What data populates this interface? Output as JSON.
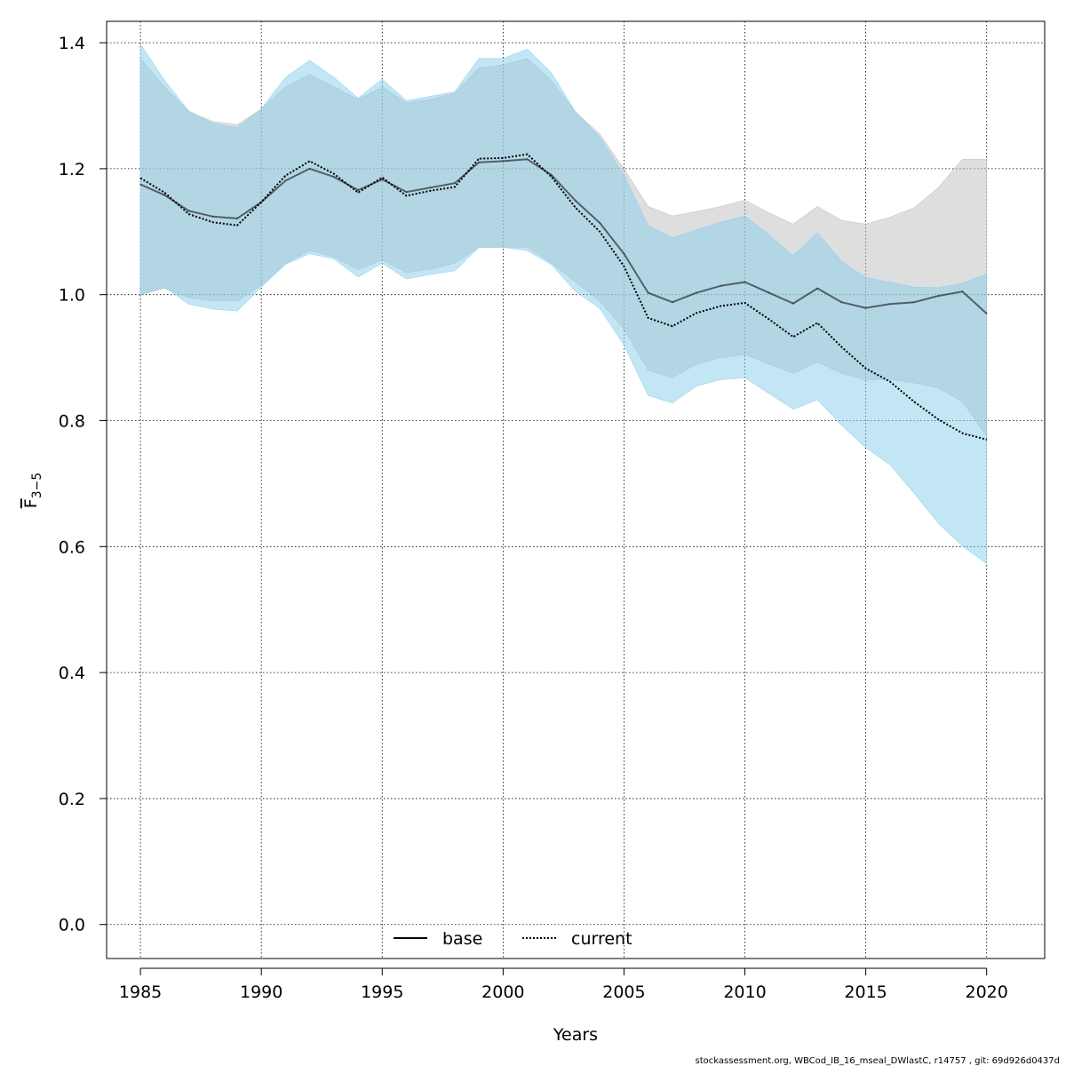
{
  "chart_data": {
    "type": "area",
    "title": "",
    "xlabel": "Years",
    "ylabel_main": "F",
    "ylabel_sub": "3−5",
    "xlim": [
      1983.6,
      2022.4
    ],
    "ylim": [
      -0.054,
      1.434
    ],
    "x_ticks": [
      1985,
      1990,
      1995,
      2000,
      2005,
      2010,
      2015,
      2020
    ],
    "y_ticks": [
      0.0,
      0.2,
      0.4,
      0.6,
      0.8,
      1.0,
      1.2,
      1.4
    ],
    "y_tick_labels": [
      "0.0",
      "0.2",
      "0.4",
      "0.6",
      "0.8",
      "1.0",
      "1.2",
      "1.4"
    ],
    "grid": true,
    "legend_position": "bottom-center",
    "x": [
      1985,
      1986,
      1987,
      1988,
      1989,
      1990,
      1991,
      1992,
      1993,
      1994,
      1995,
      1996,
      1997,
      1998,
      1999,
      2000,
      2001,
      2002,
      2003,
      2004,
      2005,
      2006,
      2007,
      2008,
      2009,
      2010,
      2011,
      2012,
      2013,
      2014,
      2015,
      2016,
      2017,
      2018,
      2019,
      2020
    ],
    "series": [
      {
        "name": "base",
        "line_style": "solid",
        "color": "#000000",
        "band_color": "#bebebe",
        "values": [
          1.175,
          1.158,
          1.133,
          1.124,
          1.121,
          1.147,
          1.181,
          1.2,
          1.187,
          1.166,
          1.183,
          1.163,
          1.17,
          1.177,
          1.21,
          1.212,
          1.215,
          1.19,
          1.149,
          1.114,
          1.065,
          1.003,
          0.988,
          1.003,
          1.014,
          1.02,
          1.003,
          0.986,
          1.01,
          0.988,
          0.979,
          0.985,
          0.988,
          0.998,
          1.005,
          0.97
        ],
        "lower": [
          1.0,
          1.01,
          0.995,
          0.99,
          0.99,
          1.015,
          1.05,
          1.07,
          1.06,
          1.04,
          1.055,
          1.035,
          1.04,
          1.05,
          1.075,
          1.075,
          1.075,
          1.05,
          1.02,
          0.99,
          0.945,
          0.88,
          0.868,
          0.89,
          0.9,
          0.905,
          0.89,
          0.875,
          0.893,
          0.875,
          0.865,
          0.865,
          0.86,
          0.852,
          0.83,
          0.775
        ],
        "upper": [
          1.375,
          1.33,
          1.29,
          1.275,
          1.27,
          1.295,
          1.33,
          1.35,
          1.33,
          1.31,
          1.33,
          1.305,
          1.31,
          1.32,
          1.36,
          1.365,
          1.375,
          1.34,
          1.29,
          1.255,
          1.2,
          1.14,
          1.125,
          1.132,
          1.14,
          1.15,
          1.13,
          1.112,
          1.14,
          1.118,
          1.112,
          1.123,
          1.138,
          1.17,
          1.215,
          1.215
        ]
      },
      {
        "name": "current",
        "line_style": "dotted",
        "color": "#000000",
        "band_color": "#87ceeb",
        "values": [
          1.185,
          1.162,
          1.128,
          1.115,
          1.11,
          1.147,
          1.189,
          1.212,
          1.192,
          1.162,
          1.186,
          1.157,
          1.165,
          1.171,
          1.216,
          1.217,
          1.223,
          1.187,
          1.138,
          1.1,
          1.045,
          0.963,
          0.95,
          0.971,
          0.982,
          0.987,
          0.961,
          0.933,
          0.955,
          0.917,
          0.883,
          0.862,
          0.83,
          0.802,
          0.78,
          0.77
        ],
        "lower": [
          1.0,
          1.012,
          0.985,
          0.977,
          0.974,
          1.012,
          1.048,
          1.065,
          1.057,
          1.028,
          1.05,
          1.025,
          1.032,
          1.038,
          1.075,
          1.075,
          1.07,
          1.048,
          1.005,
          0.978,
          0.92,
          0.84,
          0.828,
          0.855,
          0.865,
          0.868,
          0.843,
          0.818,
          0.833,
          0.793,
          0.757,
          0.73,
          0.685,
          0.637,
          0.601,
          0.573
        ],
        "upper": [
          1.398,
          1.34,
          1.292,
          1.272,
          1.265,
          1.295,
          1.345,
          1.372,
          1.345,
          1.312,
          1.342,
          1.308,
          1.315,
          1.322,
          1.375,
          1.375,
          1.39,
          1.352,
          1.29,
          1.25,
          1.19,
          1.11,
          1.09,
          1.103,
          1.115,
          1.125,
          1.095,
          1.062,
          1.098,
          1.053,
          1.027,
          1.02,
          1.012,
          1.011,
          1.018,
          1.033
        ]
      }
    ]
  },
  "legend": {
    "items": [
      {
        "label": "base",
        "style": "solid"
      },
      {
        "label": "current",
        "style": "dotted"
      }
    ]
  },
  "footer": {
    "text": "stockassessment.org, WBCod_IB_16_mseal_DWlastC, r14757 , git: 69d926d0437d"
  }
}
